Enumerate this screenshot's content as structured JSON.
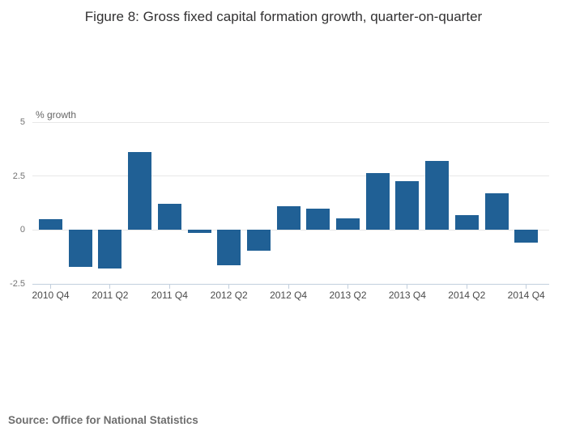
{
  "figure": {
    "title": "Figure 8: Gross fixed capital formation growth, quarter-on-quarter"
  },
  "chart_data": {
    "type": "bar",
    "categories": [
      "2010 Q4",
      "2011 Q1",
      "2011 Q2",
      "2011 Q3",
      "2011 Q4",
      "2012 Q1",
      "2012 Q2",
      "2012 Q3",
      "2012 Q4",
      "2013 Q1",
      "2013 Q2",
      "2013 Q3",
      "2013 Q4",
      "2014 Q1",
      "2014 Q2",
      "2014 Q3",
      "2014 Q4"
    ],
    "values": [
      0.5,
      -1.7,
      -1.8,
      3.6,
      1.2,
      -0.15,
      -1.65,
      -0.95,
      1.1,
      1.0,
      0.55,
      2.65,
      2.25,
      3.2,
      0.7,
      1.7,
      -0.6
    ],
    "title": "",
    "xlabel": "",
    "ylabel": "% growth",
    "ylim": [
      -2.5,
      5
    ],
    "yticks": [
      5,
      2.5,
      0,
      -2.5
    ],
    "ytick_labels": [
      "5",
      "2.5",
      "0",
      "-2.5"
    ],
    "xtick_labels_shown": [
      "2010 Q4",
      "2011 Q2",
      "2011 Q4",
      "2012 Q2",
      "2012 Q4",
      "2013 Q2",
      "2013 Q4",
      "2014 Q2",
      "2014 Q4"
    ],
    "xtick_every": 2,
    "grid": "horizontal",
    "legend": "none"
  },
  "source": {
    "text": "Source: Office for National Statistics"
  },
  "colors": {
    "bar": "#206095",
    "gridline": "#e8e8e8",
    "axis_line": "#c2cfdd",
    "title_text": "#323132",
    "x_tick_text": "#4a4a4a",
    "y_tick_text": "#737373",
    "axis_title_text": "#666666",
    "source_text": "#6e6e6e"
  }
}
